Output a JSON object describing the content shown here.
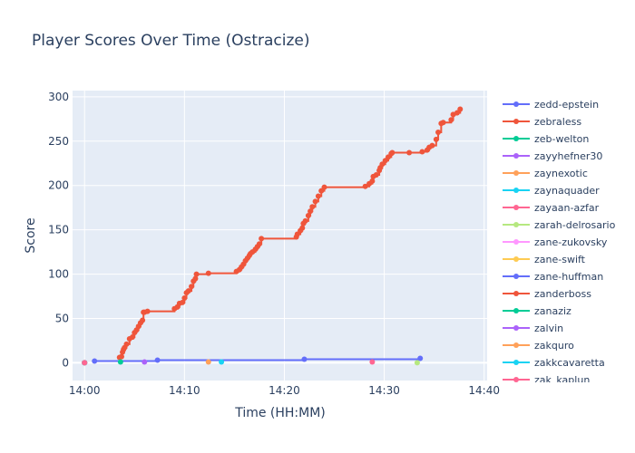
{
  "chart_data": {
    "type": "line",
    "title": "Player Scores Over Time (Ostracize)",
    "xlabel": "Time (HH:MM)",
    "ylabel": "Score",
    "x_ticks": [
      "14:00",
      "14:10",
      "14:20",
      "14:30",
      "14:40"
    ],
    "x_tick_minutes": [
      0,
      10,
      20,
      30,
      40
    ],
    "y_ticks": [
      0,
      50,
      100,
      150,
      200,
      250,
      300
    ],
    "xlim": [
      -1.2,
      40.3
    ],
    "ylim": [
      -20,
      307
    ],
    "grid": true,
    "legend_position": "right",
    "series": [
      {
        "name": "zedd-epstein",
        "color": "#636efa",
        "step": true,
        "x": [
          1.0,
          7.3,
          22.0,
          33.6
        ],
        "y": [
          2,
          3,
          4,
          5
        ]
      },
      {
        "name": "zebraless",
        "color": "#ef553b",
        "step": true,
        "x": [
          3.5,
          3.7,
          3.8,
          3.9,
          4.0,
          4.2,
          4.5,
          4.8,
          5.0,
          5.2,
          5.4,
          5.6,
          5.8,
          5.9,
          6.0,
          6.3,
          9.0,
          9.3,
          9.5,
          9.8,
          10.0,
          10.2,
          10.4,
          10.7,
          10.9,
          11.1,
          11.2,
          12.4,
          15.2,
          15.5,
          15.7,
          15.9,
          16.1,
          16.3,
          16.5,
          16.6,
          16.8,
          17.1,
          17.3,
          17.5,
          17.7,
          21.2,
          21.3,
          21.6,
          21.8,
          21.9,
          22.1,
          22.4,
          22.6,
          22.8,
          23.1,
          23.4,
          23.7,
          24.0,
          28.1,
          28.5,
          28.8,
          28.9,
          29.2,
          29.5,
          29.6,
          29.8,
          30.1,
          30.4,
          30.7,
          30.8,
          32.5,
          33.8,
          34.3,
          34.5,
          34.8,
          35.2,
          35.4,
          35.7,
          35.9,
          36.7,
          36.9,
          37.3,
          37.6
        ],
        "y": [
          6,
          7,
          12,
          15,
          17,
          21,
          27,
          29,
          34,
          37,
          41,
          45,
          48,
          57,
          57,
          58,
          61,
          63,
          67,
          68,
          73,
          79,
          81,
          86,
          92,
          95,
          100,
          101,
          103,
          105,
          108,
          111,
          115,
          118,
          121,
          123,
          125,
          128,
          131,
          134,
          140,
          142,
          145,
          149,
          152,
          157,
          160,
          166,
          171,
          176,
          182,
          188,
          194,
          198,
          199,
          202,
          205,
          210,
          212,
          217,
          220,
          224,
          228,
          232,
          236,
          237,
          237,
          238,
          240,
          243,
          245,
          252,
          260,
          270,
          271,
          274,
          280,
          282,
          286
        ]
      },
      {
        "name": "zeb-welton",
        "color": "#00cc96",
        "x": [
          3.6
        ],
        "y": [
          1
        ]
      },
      {
        "name": "zayyhefner30",
        "color": "#ab63fa",
        "x": [
          6.0
        ],
        "y": [
          1
        ]
      },
      {
        "name": "zaynexotic",
        "color": "#ffa15a",
        "x": [
          12.4
        ],
        "y": [
          1
        ]
      },
      {
        "name": "zaynaquader",
        "color": "#19d3f3",
        "x": [
          13.7
        ],
        "y": [
          1
        ]
      },
      {
        "name": "zayaan-azfar",
        "color": "#ff6692",
        "x": [
          28.8
        ],
        "y": [
          1
        ]
      },
      {
        "name": "zarah-delrosario",
        "color": "#b6e880",
        "x": [
          33.3
        ],
        "y": [
          0
        ]
      },
      {
        "name": "zane-zukovsky",
        "color": "#ff97ff",
        "x": [
          0.0
        ],
        "y": [
          0
        ]
      },
      {
        "name": "zane-swift",
        "color": "#fecb52",
        "x": [
          0.0
        ],
        "y": [
          0
        ]
      },
      {
        "name": "zane-huffman",
        "color": "#636efa",
        "x": [
          0.0
        ],
        "y": [
          0
        ]
      },
      {
        "name": "zanderboss",
        "color": "#ef553b",
        "x": [
          0.0
        ],
        "y": [
          0
        ]
      },
      {
        "name": "zanaziz",
        "color": "#00cc96",
        "x": [
          0.0
        ],
        "y": [
          0
        ]
      },
      {
        "name": "zalvin",
        "color": "#ab63fa",
        "x": [
          0.0
        ],
        "y": [
          0
        ]
      },
      {
        "name": "zakquro",
        "color": "#ffa15a",
        "x": [
          0.0
        ],
        "y": [
          0
        ]
      },
      {
        "name": "zakkcavaretta",
        "color": "#19d3f3",
        "x": [
          0.0
        ],
        "y": [
          0
        ]
      },
      {
        "name": "zak_kaplun",
        "color": "#ff6692",
        "x": [
          0.0
        ],
        "y": [
          0
        ]
      }
    ]
  }
}
